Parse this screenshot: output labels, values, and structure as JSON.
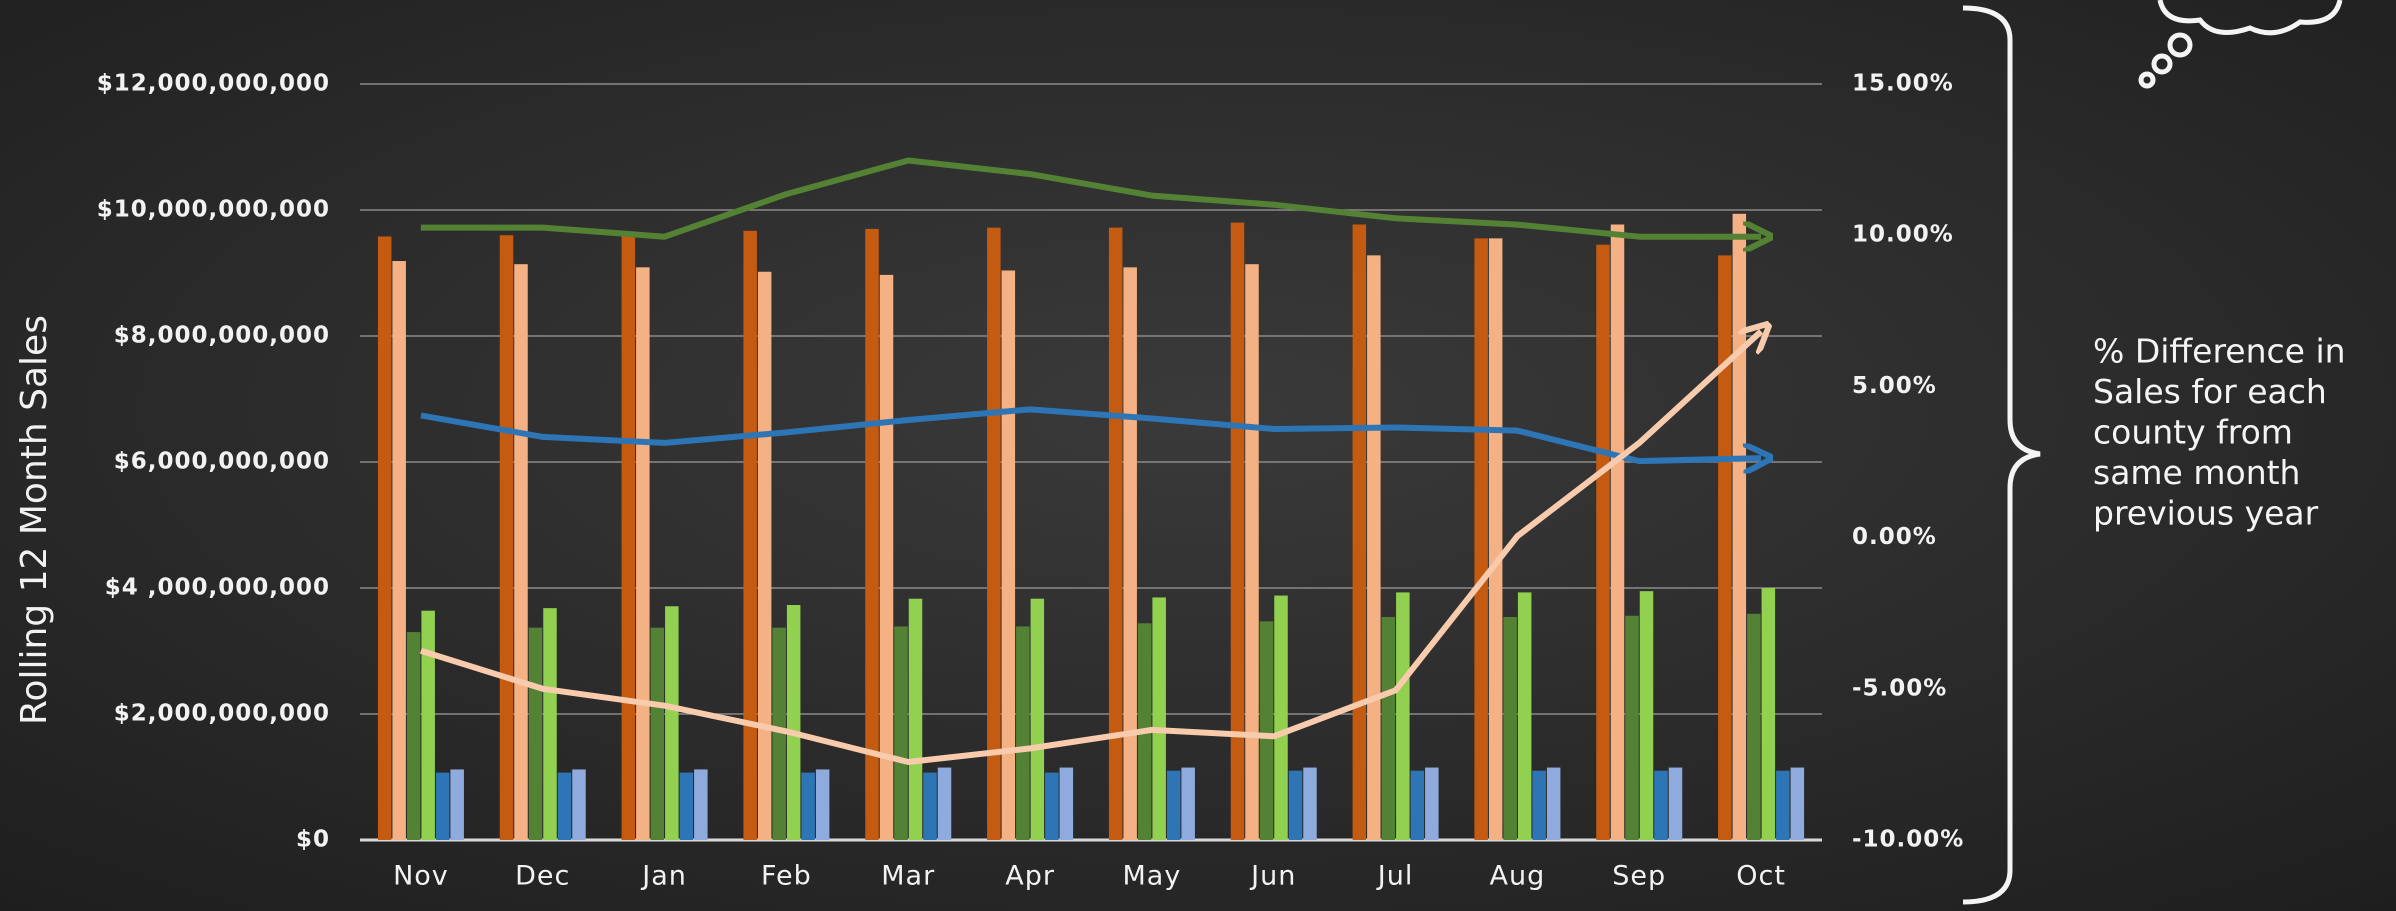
{
  "chart_data": {
    "type": "bar",
    "y_label": "Rolling 12 Month Sales",
    "annotation": [
      "% Difference in",
      "Sales for each",
      "county from",
      "same month",
      "previous year"
    ],
    "categories": [
      "Nov",
      "Dec",
      "Jan",
      "Feb",
      "Mar",
      "Apr",
      "May",
      "Jun",
      "Jul",
      "Aug",
      "Sep",
      "Oct"
    ],
    "series": [
      {
        "color": "#c55a11",
        "values": [
          9580000000,
          9600000000,
          9580000000,
          9670000000,
          9700000000,
          9720000000,
          9720000000,
          9800000000,
          9770000000,
          9550000000,
          9450000000,
          9280000000
        ]
      },
      {
        "color": "#f4b183",
        "values": [
          9190000000,
          9140000000,
          9090000000,
          9020000000,
          8970000000,
          9040000000,
          9090000000,
          9140000000,
          9280000000,
          9550000000,
          9770000000,
          9940000000
        ]
      },
      {
        "color": "#548235",
        "values": [
          3300000000,
          3370000000,
          3370000000,
          3370000000,
          3390000000,
          3390000000,
          3440000000,
          3470000000,
          3540000000,
          3540000000,
          3560000000,
          3590000000
        ]
      },
      {
        "color": "#92d050",
        "values": [
          3640000000,
          3680000000,
          3710000000,
          3730000000,
          3830000000,
          3830000000,
          3850000000,
          3880000000,
          3930000000,
          3930000000,
          3950000000,
          4000000000
        ]
      },
      {
        "color": "#2e75b6",
        "values": [
          1070000000,
          1070000000,
          1070000000,
          1070000000,
          1070000000,
          1070000000,
          1100000000,
          1100000000,
          1100000000,
          1100000000,
          1100000000,
          1100000000
        ]
      },
      {
        "color": "#8faadc",
        "values": [
          1120000000,
          1120000000,
          1120000000,
          1120000000,
          1150000000,
          1150000000,
          1150000000,
          1150000000,
          1150000000,
          1150000000,
          1150000000,
          1150000000
        ]
      },
      {
        "type": "line",
        "axis": "y2",
        "color": "#548235",
        "values": [
          10.25,
          10.25,
          9.95,
          11.36,
          12.47,
          12.02,
          11.31,
          11.01,
          10.56,
          10.35,
          9.95,
          9.95
        ]
      },
      {
        "type": "line",
        "axis": "y2",
        "color": "#2e75b6",
        "values": [
          4.04,
          3.33,
          3.13,
          3.48,
          3.89,
          4.24,
          3.94,
          3.59,
          3.64,
          3.54,
          2.53,
          2.63
        ]
      },
      {
        "type": "line",
        "axis": "y2",
        "color": "#f8cbad",
        "values": [
          -3.74,
          -5.0,
          -5.56,
          -6.41,
          -7.42,
          -6.97,
          -6.36,
          -6.57,
          -5.05,
          0.05,
          3.13,
          6.82
        ]
      }
    ],
    "ylim": [
      0,
      12000000000
    ],
    "yticks": [
      {
        "value": 0,
        "label": "$0"
      },
      {
        "value": 2000000000,
        "label": "$2,000,000,000"
      },
      {
        "value": 4000000000,
        "label": "$4 ,000,000,000"
      },
      {
        "value": 6000000000,
        "label": "$6,000,000,000"
      },
      {
        "value": 8000000000,
        "label": "$8,000,000,000"
      },
      {
        "value": 10000000000,
        "label": "$10,000,000,000"
      },
      {
        "value": 12000000000,
        "label": "$12,000,000,000"
      }
    ],
    "y2lim": [
      -10,
      15
    ],
    "y2ticks": [
      {
        "value": -10,
        "label": "-10.00%"
      },
      {
        "value": -5,
        "label": "-5.00%"
      },
      {
        "value": 0,
        "label": "0.00%"
      },
      {
        "value": 5,
        "label": "5.00%"
      },
      {
        "value": 10,
        "label": "10.00%"
      },
      {
        "value": 15,
        "label": "15.00%"
      }
    ],
    "grid": true
  }
}
